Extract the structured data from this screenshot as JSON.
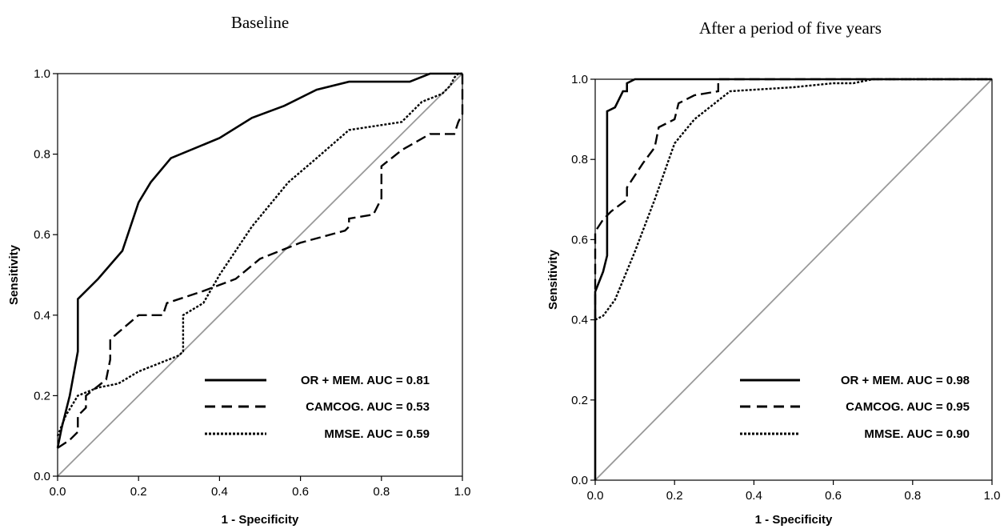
{
  "chart_data": [
    {
      "type": "line",
      "title": "Baseline",
      "xlabel": "1 - Specificity",
      "ylabel": "Sensitivity",
      "xlim": [
        0,
        1
      ],
      "ylim": [
        0,
        1
      ],
      "x_ticks": [
        "0.0",
        "0.2",
        "0.4",
        "0.6",
        "0.8",
        "1.0"
      ],
      "y_ticks": [
        "0.0",
        "0.2",
        "0.4",
        "0.6",
        "0.8",
        "1.0"
      ],
      "grid": false,
      "legend_position": "bottom-right",
      "reference_line": {
        "x": [
          0,
          1
        ],
        "y": [
          0,
          1
        ],
        "color": "#999999"
      },
      "series": [
        {
          "name": "OR + MEM. AUC = 0.81",
          "style": "solid",
          "x": [
            0,
            0.01,
            0.03,
            0.05,
            0.05,
            0.1,
            0.16,
            0.2,
            0.23,
            0.28,
            0.4,
            0.48,
            0.56,
            0.64,
            0.72,
            0.78,
            0.87,
            0.92,
            1.0,
            1.0
          ],
          "y": [
            0.07,
            0.12,
            0.2,
            0.31,
            0.44,
            0.49,
            0.56,
            0.68,
            0.73,
            0.79,
            0.84,
            0.89,
            0.92,
            0.96,
            0.98,
            0.98,
            0.98,
            1.0,
            1.0,
            1.0
          ]
        },
        {
          "name": "CAMCOG. AUC = 0.53",
          "style": "dashed",
          "x": [
            0,
            0.03,
            0.05,
            0.05,
            0.07,
            0.07,
            0.12,
            0.13,
            0.13,
            0.2,
            0.26,
            0.27,
            0.3,
            0.36,
            0.44,
            0.5,
            0.6,
            0.71,
            0.72,
            0.72,
            0.78,
            0.8,
            0.8,
            0.8,
            0.85,
            0.92,
            0.98,
            0.99,
            1.0,
            1.0
          ],
          "y": [
            0.07,
            0.09,
            0.11,
            0.15,
            0.17,
            0.2,
            0.24,
            0.29,
            0.34,
            0.4,
            0.4,
            0.43,
            0.44,
            0.46,
            0.49,
            0.54,
            0.58,
            0.61,
            0.62,
            0.64,
            0.65,
            0.69,
            0.74,
            0.77,
            0.81,
            0.85,
            0.85,
            0.88,
            0.9,
            1.0
          ]
        },
        {
          "name": "MMSE. AUC = 0.59",
          "style": "dotted",
          "x": [
            0,
            0.02,
            0.05,
            0.1,
            0.15,
            0.2,
            0.25,
            0.3,
            0.31,
            0.31,
            0.36,
            0.4,
            0.48,
            0.57,
            0.64,
            0.72,
            0.85,
            0.9,
            0.95,
            0.97,
            0.98,
            0.99,
            1.0
          ],
          "y": [
            0.1,
            0.15,
            0.2,
            0.22,
            0.23,
            0.26,
            0.28,
            0.3,
            0.31,
            0.4,
            0.43,
            0.5,
            0.62,
            0.73,
            0.79,
            0.86,
            0.88,
            0.93,
            0.95,
            0.97,
            0.99,
            1.0,
            1.0
          ]
        }
      ]
    },
    {
      "type": "line",
      "title": "After a period of five years",
      "xlabel": "1 - Specificity",
      "ylabel": "Sensitivity",
      "xlim": [
        0,
        1
      ],
      "ylim": [
        0,
        1
      ],
      "x_ticks": [
        "0.0",
        "0.2",
        "0.4",
        "0.6",
        "0.8",
        "1.0"
      ],
      "y_ticks": [
        "0.0",
        "0.2",
        "0.4",
        "0.6",
        "0.8",
        "1.0"
      ],
      "grid": false,
      "legend_position": "bottom-right",
      "reference_line": {
        "x": [
          0,
          1
        ],
        "y": [
          0,
          1
        ],
        "color": "#999999"
      },
      "series": [
        {
          "name": "OR + MEM. AUC = 0.98",
          "style": "solid",
          "x": [
            0,
            0,
            0,
            0.02,
            0.03,
            0.03,
            0.05,
            0.07,
            0.08,
            0.08,
            0.1,
            0.13,
            1.0
          ],
          "y": [
            0,
            0.4,
            0.47,
            0.52,
            0.56,
            0.92,
            0.93,
            0.97,
            0.97,
            0.99,
            1.0,
            1.0,
            1.0
          ]
        },
        {
          "name": "CAMCOG. AUC = 0.95",
          "style": "dashed",
          "x": [
            0,
            0,
            0.02,
            0.04,
            0.08,
            0.08,
            0.12,
            0.15,
            0.16,
            0.2,
            0.21,
            0.25,
            0.31,
            0.31,
            1.0
          ],
          "y": [
            0.4,
            0.62,
            0.65,
            0.67,
            0.7,
            0.73,
            0.79,
            0.83,
            0.88,
            0.9,
            0.94,
            0.96,
            0.97,
            1.0,
            1.0
          ]
        },
        {
          "name": "MMSE. AUC = 0.90",
          "style": "dotted",
          "x": [
            0,
            0.02,
            0.05,
            0.1,
            0.15,
            0.2,
            0.25,
            0.34,
            0.5,
            0.6,
            0.65,
            0.7,
            1.0
          ],
          "y": [
            0.4,
            0.41,
            0.45,
            0.57,
            0.7,
            0.84,
            0.9,
            0.97,
            0.98,
            0.99,
            0.99,
            1.0,
            1.0
          ]
        }
      ]
    }
  ]
}
